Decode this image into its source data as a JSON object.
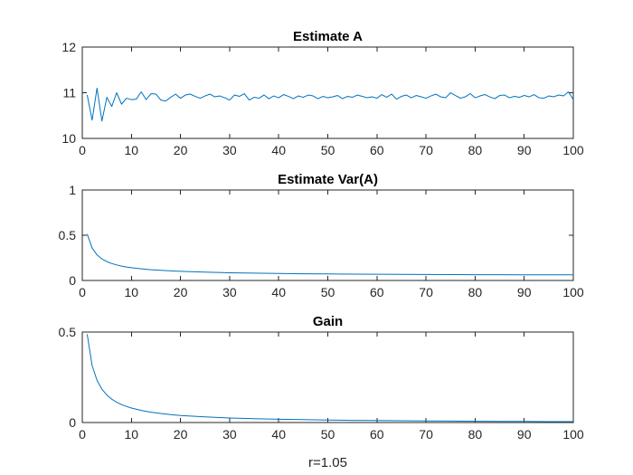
{
  "chart_data": [
    {
      "type": "line",
      "title": "Estimate A",
      "xlabel": "",
      "ylabel": "",
      "xlim": [
        0,
        100
      ],
      "ylim": [
        10,
        12
      ],
      "xticks": [
        "0",
        "10",
        "20",
        "30",
        "40",
        "50",
        "60",
        "70",
        "80",
        "90",
        "100"
      ],
      "yticks": [
        "10",
        "11",
        "12"
      ],
      "color": "#0072BD",
      "series": [
        {
          "x": [
            1,
            2,
            3,
            4,
            5,
            6,
            7,
            8,
            9,
            10,
            11,
            12,
            13,
            14,
            15,
            16,
            17,
            18,
            19,
            20,
            21,
            22,
            23,
            24,
            25,
            26,
            27,
            28,
            29,
            30,
            31,
            32,
            33,
            34,
            35,
            36,
            37,
            38,
            39,
            40,
            41,
            42,
            43,
            44,
            45,
            46,
            47,
            48,
            49,
            50,
            51,
            52,
            53,
            54,
            55,
            56,
            57,
            58,
            59,
            60,
            61,
            62,
            63,
            64,
            65,
            66,
            67,
            68,
            69,
            70,
            71,
            72,
            73,
            74,
            75,
            76,
            77,
            78,
            79,
            80,
            81,
            82,
            83,
            84,
            85,
            86,
            87,
            88,
            89,
            90,
            91,
            92,
            93,
            94,
            95,
            96,
            97,
            98,
            99,
            100
          ],
          "values": [
            10.95,
            10.4,
            11.1,
            10.38,
            10.9,
            10.7,
            11.0,
            10.75,
            10.88,
            10.85,
            10.86,
            11.02,
            10.85,
            10.98,
            10.97,
            10.84,
            10.82,
            10.9,
            10.97,
            10.88,
            10.95,
            10.97,
            10.92,
            10.88,
            10.93,
            10.97,
            10.91,
            10.93,
            10.89,
            10.84,
            10.95,
            10.92,
            10.98,
            10.84,
            10.9,
            10.88,
            10.95,
            10.87,
            10.93,
            10.89,
            10.96,
            10.92,
            10.87,
            10.93,
            10.9,
            10.95,
            10.93,
            10.87,
            10.92,
            10.89,
            10.91,
            10.94,
            10.87,
            10.92,
            10.9,
            10.95,
            10.92,
            10.89,
            10.91,
            10.88,
            10.96,
            10.9,
            10.97,
            10.86,
            10.92,
            10.95,
            10.89,
            10.94,
            10.91,
            10.88,
            10.93,
            10.97,
            10.91,
            10.89,
            11.0,
            10.94,
            10.88,
            10.91,
            10.98,
            10.89,
            10.93,
            10.96,
            10.91,
            10.87,
            10.94,
            10.95,
            10.89,
            10.92,
            10.9,
            10.94,
            10.91,
            10.96,
            10.89,
            10.88,
            10.93,
            10.91,
            10.95,
            10.93,
            11.02,
            10.85
          ]
        }
      ]
    },
    {
      "type": "line",
      "title": "Estimate Var(A)",
      "xlabel": "",
      "ylabel": "",
      "xlim": [
        0,
        100
      ],
      "ylim": [
        0,
        1
      ],
      "xticks": [
        "0",
        "10",
        "20",
        "30",
        "40",
        "50",
        "60",
        "70",
        "80",
        "90",
        "100"
      ],
      "yticks": [
        "0",
        "0.5",
        "1"
      ],
      "color": "#0072BD",
      "series": [
        {
          "x": [
            1,
            2,
            3,
            4,
            5,
            6,
            7,
            8,
            9,
            10,
            12,
            14,
            16,
            18,
            20,
            25,
            30,
            35,
            40,
            45,
            50,
            55,
            60,
            65,
            70,
            75,
            80,
            85,
            90,
            95,
            100
          ],
          "values": [
            0.513,
            0.359,
            0.283,
            0.238,
            0.209,
            0.187,
            0.172,
            0.159,
            0.149,
            0.141,
            0.129,
            0.119,
            0.112,
            0.106,
            0.101,
            0.092,
            0.085,
            0.081,
            0.077,
            0.074,
            0.072,
            0.07,
            0.069,
            0.067,
            0.066,
            0.065,
            0.064,
            0.064,
            0.063,
            0.062,
            0.062
          ]
        }
      ]
    },
    {
      "type": "line",
      "title": "Gain",
      "xlabel": "r=1.05",
      "ylabel": "",
      "xlim": [
        0,
        100
      ],
      "ylim": [
        0,
        0.5
      ],
      "xticks": [
        "0",
        "10",
        "20",
        "30",
        "40",
        "50",
        "60",
        "70",
        "80",
        "90",
        "100"
      ],
      "yticks": [
        "0",
        "0.5"
      ],
      "color": "#0072BD",
      "series": [
        {
          "x": [
            1,
            2,
            3,
            4,
            5,
            6,
            7,
            8,
            9,
            10,
            12,
            14,
            16,
            18,
            20,
            25,
            30,
            35,
            40,
            45,
            50,
            55,
            60,
            65,
            70,
            75,
            80,
            85,
            90,
            95,
            100
          ],
          "values": [
            0.488,
            0.315,
            0.233,
            0.184,
            0.152,
            0.129,
            0.112,
            0.099,
            0.089,
            0.08,
            0.067,
            0.057,
            0.05,
            0.044,
            0.039,
            0.031,
            0.025,
            0.021,
            0.018,
            0.016,
            0.014,
            0.012,
            0.011,
            0.01,
            0.009,
            0.008,
            0.007,
            0.006,
            0.006,
            0.005,
            0.005
          ]
        }
      ]
    }
  ]
}
